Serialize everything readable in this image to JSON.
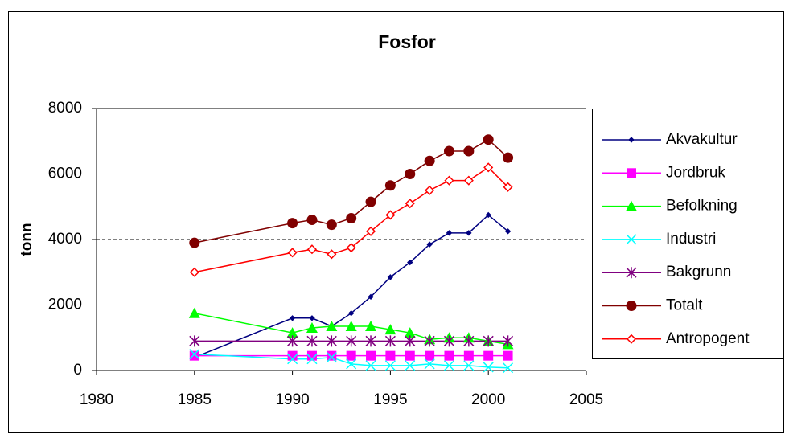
{
  "chart_data": {
    "type": "line",
    "title": "Fosfor",
    "y_label": "tonn",
    "x": [
      1985,
      1990,
      1991,
      1992,
      1993,
      1994,
      1995,
      1996,
      1997,
      1998,
      1999,
      2000,
      2001
    ],
    "xlim": [
      1980,
      2005
    ],
    "xticks": [
      1980,
      1985,
      1990,
      1995,
      2000,
      2005
    ],
    "ylim": [
      0,
      8000
    ],
    "yticks": [
      0,
      2000,
      4000,
      6000,
      8000
    ],
    "grid": true,
    "legend": "right",
    "series": [
      {
        "name": "Akvakultur",
        "color": "#000080",
        "marker": "diamond",
        "values": [
          400,
          1600,
          1600,
          1350,
          1750,
          2250,
          2850,
          3300,
          3850,
          4200,
          4200,
          4750,
          4250
        ]
      },
      {
        "name": "Jordbruk",
        "color": "#ff00ff",
        "marker": "square",
        "values": [
          450,
          450,
          450,
          450,
          450,
          450,
          450,
          450,
          450,
          450,
          450,
          450,
          450
        ]
      },
      {
        "name": "Befolkning",
        "color": "#00ff00",
        "marker": "triangle",
        "values": [
          1750,
          1150,
          1300,
          1350,
          1350,
          1350,
          1250,
          1150,
          950,
          1000,
          1000,
          900,
          800
        ]
      },
      {
        "name": "Industri",
        "color": "#00ffff",
        "marker": "x",
        "values": [
          500,
          350,
          350,
          400,
          200,
          150,
          150,
          150,
          200,
          150,
          150,
          100,
          80
        ]
      },
      {
        "name": "Bakgrunn",
        "color": "#800080",
        "marker": "asterisk",
        "values": [
          900,
          900,
          900,
          900,
          900,
          900,
          900,
          900,
          900,
          900,
          900,
          900,
          900
        ]
      },
      {
        "name": "Totalt",
        "color": "#800000",
        "marker": "circle",
        "values": [
          3900,
          4500,
          4600,
          4450,
          4650,
          5150,
          5650,
          6000,
          6400,
          6700,
          6700,
          7050,
          6500
        ]
      },
      {
        "name": "Antropogent",
        "color": "#ff0000",
        "marker": "open-diamond",
        "values": [
          3000,
          3600,
          3700,
          3550,
          3750,
          4250,
          4750,
          5100,
          5500,
          5800,
          5800,
          6200,
          5600
        ]
      }
    ]
  }
}
